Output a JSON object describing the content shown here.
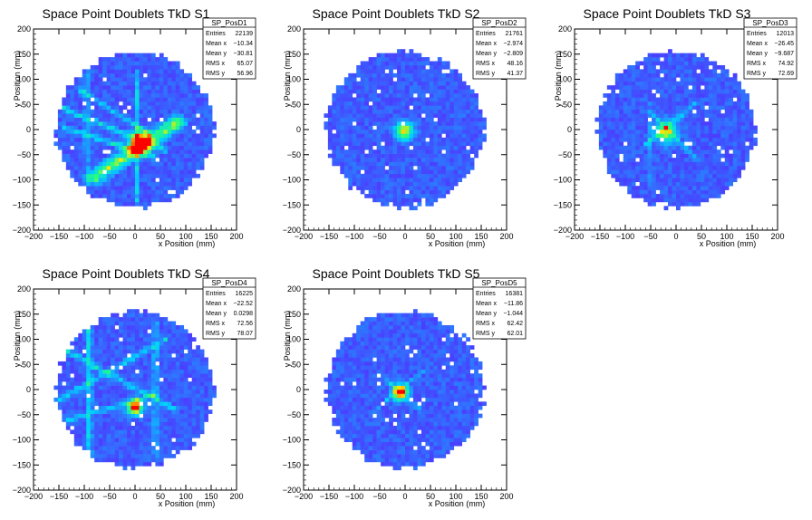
{
  "chart_data": [
    {
      "type": "heatmap",
      "title": "Space Point Doublets TkD S1",
      "xlabel": "x Position (mm)",
      "ylabel": "y Position (mm)",
      "xlim": [
        -200,
        200
      ],
      "ylim": [
        -200,
        200
      ],
      "xticks": [
        -200,
        -150,
        -100,
        -50,
        0,
        50,
        100,
        150,
        200
      ],
      "yticks": [
        -200,
        -150,
        -100,
        -50,
        0,
        50,
        100,
        150,
        200
      ],
      "stats": {
        "name": "SP_PosD1",
        "rows": [
          {
            "label": "Entries",
            "value": "22139"
          },
          {
            "label": "Mean x",
            "value": "−10.34"
          },
          {
            "label": "Mean y",
            "value": "−30.81"
          },
          {
            "label": "RMS x",
            "value": "65.07"
          },
          {
            "label": "RMS y",
            "value": "56.96"
          }
        ]
      },
      "colors": {
        "low": "#5a1fff",
        "mid": "#00d2ff",
        "high": "#ff0000"
      },
      "features": {
        "disk_radius": 155,
        "hotspots": [
          {
            "x": 10,
            "y": -25,
            "intensity": 1.0,
            "sigma": 14
          }
        ],
        "bands": [
          {
            "x1": -80,
            "y1": -95,
            "x2": 85,
            "y2": 15,
            "width": 22,
            "intensity": 0.55
          },
          {
            "x1": -150,
            "y1": 45,
            "x2": 60,
            "y2": -40,
            "width": 8,
            "intensity": 0.3
          },
          {
            "x1": -140,
            "y1": 5,
            "x2": 40,
            "y2": -55,
            "width": 8,
            "intensity": 0.3
          },
          {
            "x1": 5,
            "y1": 115,
            "x2": 5,
            "y2": -145,
            "width": 7,
            "intensity": 0.25
          },
          {
            "x1": -95,
            "y1": 115,
            "x2": -95,
            "y2": -110,
            "width": 7,
            "intensity": 0.2
          },
          {
            "x1": -110,
            "y1": 80,
            "x2": 30,
            "y2": -10,
            "width": 7,
            "intensity": 0.25
          }
        ]
      }
    },
    {
      "type": "heatmap",
      "title": "Space Point Doublets TkD S2",
      "xlabel": "x Position (mm)",
      "ylabel": "y Position (mm)",
      "xlim": [
        -200,
        200
      ],
      "ylim": [
        -200,
        200
      ],
      "xticks": [
        -200,
        -150,
        -100,
        -50,
        0,
        50,
        100,
        150,
        200
      ],
      "yticks": [
        -200,
        -150,
        -100,
        -50,
        0,
        50,
        100,
        150,
        200
      ],
      "stats": {
        "name": "SP_PosD2",
        "rows": [
          {
            "label": "Entries",
            "value": "21761"
          },
          {
            "label": "Mean x",
            "value": "−2.974"
          },
          {
            "label": "Mean y",
            "value": "−2.809"
          },
          {
            "label": "RMS x",
            "value": "48.16"
          },
          {
            "label": "RMS y",
            "value": "41.37"
          }
        ]
      },
      "colors": {
        "low": "#5a1fff",
        "mid": "#00d2ff",
        "high": "#ff0000"
      },
      "features": {
        "disk_radius": 155,
        "hotspots": [
          {
            "x": -2,
            "y": -2,
            "intensity": 0.7,
            "sigma": 12
          }
        ],
        "bands": []
      }
    },
    {
      "type": "heatmap",
      "title": "Space Point Doublets TkD S3",
      "xlabel": "x Position (mm)",
      "ylabel": "y Position (mm)",
      "xlim": [
        -200,
        200
      ],
      "ylim": [
        -200,
        200
      ],
      "xticks": [
        -200,
        -150,
        -100,
        -50,
        0,
        50,
        100,
        150,
        200
      ],
      "yticks": [
        -200,
        -150,
        -100,
        -50,
        0,
        50,
        100,
        150,
        200
      ],
      "stats": {
        "name": "SP_PosD3",
        "rows": [
          {
            "label": "Entries",
            "value": "12013"
          },
          {
            "label": "Mean x",
            "value": "−26.45"
          },
          {
            "label": "Mean y",
            "value": "−9.687"
          },
          {
            "label": "RMS x",
            "value": "74.92"
          },
          {
            "label": "RMS y",
            "value": "72.69"
          }
        ]
      },
      "colors": {
        "low": "#5a1fff",
        "mid": "#00d2ff",
        "high": "#ff0000"
      },
      "features": {
        "disk_radius": 155,
        "hotspots": [
          {
            "x": -20,
            "y": -5,
            "intensity": 0.6,
            "sigma": 14
          }
        ],
        "bands": [
          {
            "x1": -60,
            "y1": -30,
            "x2": 35,
            "y2": 50,
            "width": 6,
            "intensity": 0.25
          },
          {
            "x1": -50,
            "y1": 35,
            "x2": 40,
            "y2": -60,
            "width": 6,
            "intensity": 0.2
          },
          {
            "x1": -50,
            "y1": 50,
            "x2": -50,
            "y2": -110,
            "width": 6,
            "intensity": 0.15
          }
        ]
      }
    },
    {
      "type": "heatmap",
      "title": "Space Point Doublets TkD S4",
      "xlabel": "x Position (mm)",
      "ylabel": "y Position (mm)",
      "xlim": [
        -200,
        200
      ],
      "ylim": [
        -200,
        200
      ],
      "xticks": [
        -200,
        -150,
        -100,
        -50,
        0,
        50,
        100,
        150,
        200
      ],
      "yticks": [
        -200,
        -150,
        -100,
        -50,
        0,
        50,
        100,
        150,
        200
      ],
      "stats": {
        "name": "SP_PosD4",
        "rows": [
          {
            "label": "Entries",
            "value": "16225"
          },
          {
            "label": "Mean x",
            "value": "−22.52"
          },
          {
            "label": "Mean y",
            "value": "0.0298"
          },
          {
            "label": "RMS x",
            "value": "72.56"
          },
          {
            "label": "RMS y",
            "value": "78.07"
          }
        ]
      },
      "colors": {
        "low": "#5a1fff",
        "mid": "#00d2ff",
        "high": "#ff0000"
      },
      "features": {
        "disk_radius": 155,
        "hotspots": [
          {
            "x": 0,
            "y": -35,
            "intensity": 1.0,
            "sigma": 10
          }
        ],
        "bands": [
          {
            "x1": -90,
            "y1": 150,
            "x2": -90,
            "y2": -140,
            "width": 8,
            "intensity": 0.3
          },
          {
            "x1": -140,
            "y1": 80,
            "x2": 80,
            "y2": -40,
            "width": 8,
            "intensity": 0.3
          },
          {
            "x1": -150,
            "y1": -20,
            "x2": 60,
            "y2": 100,
            "width": 8,
            "intensity": 0.25
          },
          {
            "x1": 40,
            "y1": 130,
            "x2": 40,
            "y2": -130,
            "width": 7,
            "intensity": 0.25
          },
          {
            "x1": -130,
            "y1": -60,
            "x2": 40,
            "y2": -10,
            "width": 7,
            "intensity": 0.25
          }
        ]
      }
    },
    {
      "type": "heatmap",
      "title": "Space Point Doublets TkD S5",
      "xlabel": "x Position (mm)",
      "ylabel": "y Position (mm)",
      "xlim": [
        -200,
        200
      ],
      "ylim": [
        -200,
        200
      ],
      "xticks": [
        -200,
        -150,
        -100,
        -50,
        0,
        50,
        100,
        150,
        200
      ],
      "yticks": [
        -200,
        -150,
        -100,
        -50,
        0,
        50,
        100,
        150,
        200
      ],
      "stats": {
        "name": "SP_PosD5",
        "rows": [
          {
            "label": "Entries",
            "value": "16381"
          },
          {
            "label": "Mean x",
            "value": "−11.86"
          },
          {
            "label": "Mean y",
            "value": "−1.044"
          },
          {
            "label": "RMS x",
            "value": "62.42"
          },
          {
            "label": "RMS y",
            "value": "62.01"
          }
        ]
      },
      "colors": {
        "low": "#5a1fff",
        "mid": "#00d2ff",
        "high": "#ff0000"
      },
      "features": {
        "disk_radius": 155,
        "hotspots": [
          {
            "x": -10,
            "y": -5,
            "intensity": 1.0,
            "sigma": 10
          }
        ],
        "bands": [
          {
            "x1": -60,
            "y1": -40,
            "x2": 40,
            "y2": 40,
            "width": 5,
            "intensity": 0.2
          },
          {
            "x1": -50,
            "y1": 30,
            "x2": 30,
            "y2": -40,
            "width": 5,
            "intensity": 0.2
          }
        ]
      }
    }
  ]
}
